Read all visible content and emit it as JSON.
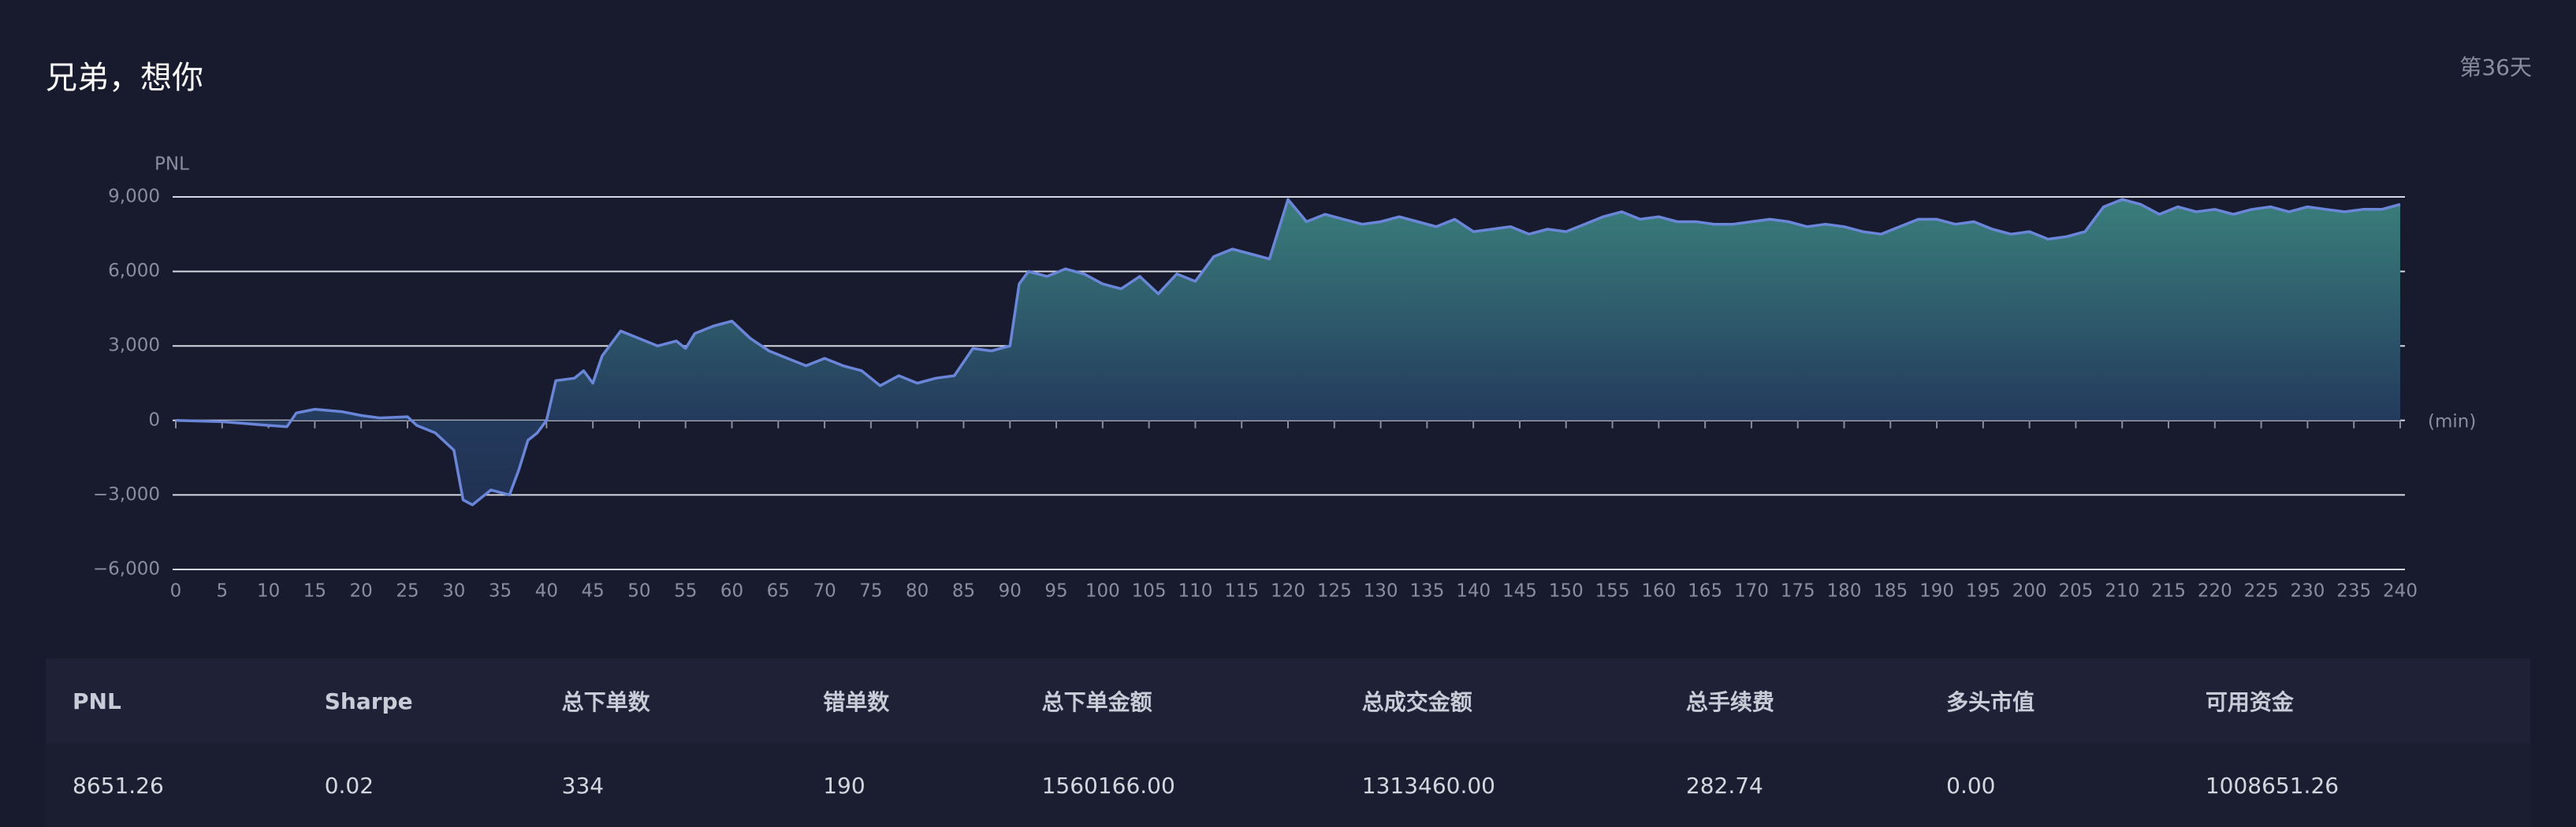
{
  "header": {
    "title": "兄弟，想你",
    "day": "第36天"
  },
  "chart_data": {
    "type": "area",
    "y_label": "PNL",
    "x_label": "(min)",
    "color": "#6a86d8",
    "grid": true,
    "xlim": [
      0,
      240
    ],
    "ylim": [
      -6000,
      9000
    ],
    "xticks": [
      0,
      5,
      10,
      15,
      20,
      25,
      30,
      35,
      40,
      45,
      50,
      55,
      60,
      65,
      70,
      75,
      80,
      85,
      90,
      95,
      100,
      105,
      110,
      115,
      120,
      125,
      130,
      135,
      140,
      145,
      150,
      155,
      160,
      165,
      170,
      175,
      180,
      185,
      190,
      195,
      200,
      205,
      210,
      215,
      220,
      225,
      230,
      235,
      240
    ],
    "yticks": [
      {
        "value": -6000,
        "label": "−6,000"
      },
      {
        "value": -3000,
        "label": "−3,000"
      },
      0,
      {
        "value": 3000,
        "label": "3,000"
      },
      {
        "value": 6000,
        "label": "6,000"
      },
      {
        "value": 9000,
        "label": "9,000"
      }
    ],
    "x": [
      0,
      5,
      10,
      12,
      13,
      15,
      18,
      20,
      22,
      25,
      26,
      28,
      30,
      31,
      32,
      34,
      36,
      37,
      38,
      39,
      40,
      41,
      43,
      44,
      45,
      46,
      48,
      50,
      52,
      54,
      55,
      56,
      58,
      60,
      62,
      64,
      66,
      68,
      70,
      72,
      74,
      76,
      78,
      80,
      82,
      84,
      86,
      88,
      90,
      91,
      92,
      94,
      96,
      98,
      100,
      102,
      104,
      106,
      108,
      110,
      112,
      114,
      116,
      118,
      120,
      122,
      124,
      126,
      128,
      130,
      132,
      134,
      136,
      138,
      140,
      142,
      144,
      146,
      148,
      150,
      152,
      154,
      156,
      158,
      160,
      162,
      164,
      166,
      168,
      170,
      172,
      174,
      176,
      178,
      180,
      182,
      184,
      186,
      188,
      190,
      192,
      194,
      196,
      198,
      200,
      202,
      204,
      206,
      208,
      210,
      212,
      214,
      216,
      218,
      220,
      222,
      224,
      226,
      228,
      230,
      232,
      234,
      236,
      238,
      240
    ],
    "values": [
      0,
      -50,
      -200,
      -250,
      300,
      450,
      350,
      200,
      100,
      150,
      -200,
      -500,
      -1200,
      -3200,
      -3400,
      -2800,
      -3000,
      -2000,
      -800,
      -500,
      0,
      1600,
      1700,
      2000,
      1500,
      2600,
      3600,
      3300,
      3000,
      3200,
      2900,
      3500,
      3800,
      4000,
      3300,
      2800,
      2500,
      2200,
      2500,
      2200,
      2000,
      1400,
      1800,
      1500,
      1700,
      1800,
      2900,
      2800,
      3000,
      5500,
      6000,
      5800,
      6100,
      5900,
      5500,
      5300,
      5800,
      5100,
      5900,
      5600,
      6600,
      6900,
      6700,
      6500,
      8900,
      8000,
      8300,
      8100,
      7900,
      8000,
      8200,
      8000,
      7800,
      8100,
      7600,
      7700,
      7800,
      7500,
      7700,
      7600,
      7900,
      8200,
      8400,
      8100,
      8200,
      8000,
      8000,
      7900,
      7900,
      8000,
      8100,
      8000,
      7800,
      7900,
      7800,
      7600,
      7500,
      7800,
      8100,
      8100,
      7900,
      8000,
      7700,
      7500,
      7600,
      7300,
      7400,
      7600,
      8600,
      8900,
      8700,
      8300,
      8600,
      8400,
      8500,
      8300,
      8500,
      8600,
      8400,
      8600,
      8500,
      8400,
      8500,
      8500,
      8700
    ]
  },
  "table": {
    "headers": [
      "PNL",
      "Sharpe",
      "总下单数",
      "错单数",
      "总下单金额",
      "总成交金额",
      "总手续费",
      "多头市值",
      "可用资金"
    ],
    "rows": [
      [
        "8651.26",
        "0.02",
        "334",
        "190",
        "1560166.00",
        "1313460.00",
        "282.74",
        "0.00",
        "1008651.26"
      ]
    ]
  }
}
